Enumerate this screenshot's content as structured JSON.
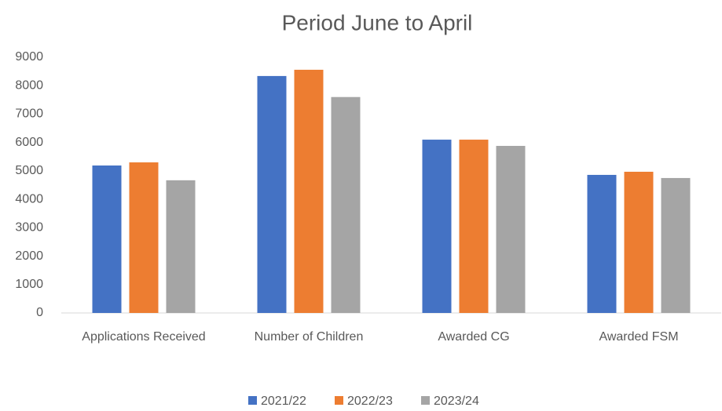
{
  "chart_data": {
    "type": "bar",
    "title": "Period June to April",
    "categories": [
      "Applications Received",
      "Number of Children",
      "Awarded CG",
      "Awarded FSM"
    ],
    "series": [
      {
        "name": "2021/22",
        "color": "#4472c4",
        "values": [
          5190,
          8340,
          6100,
          4860
        ]
      },
      {
        "name": "2022/23",
        "color": "#ed7d31",
        "values": [
          5300,
          8560,
          6100,
          4970
        ]
      },
      {
        "name": "2023/24",
        "color": "#a5a5a5",
        "values": [
          4670,
          7600,
          5880,
          4750
        ]
      }
    ],
    "ylim": [
      0,
      9000
    ],
    "yticks": [
      0,
      1000,
      2000,
      3000,
      4000,
      5000,
      6000,
      7000,
      8000,
      9000
    ],
    "grid": false,
    "legend": "bottom"
  }
}
